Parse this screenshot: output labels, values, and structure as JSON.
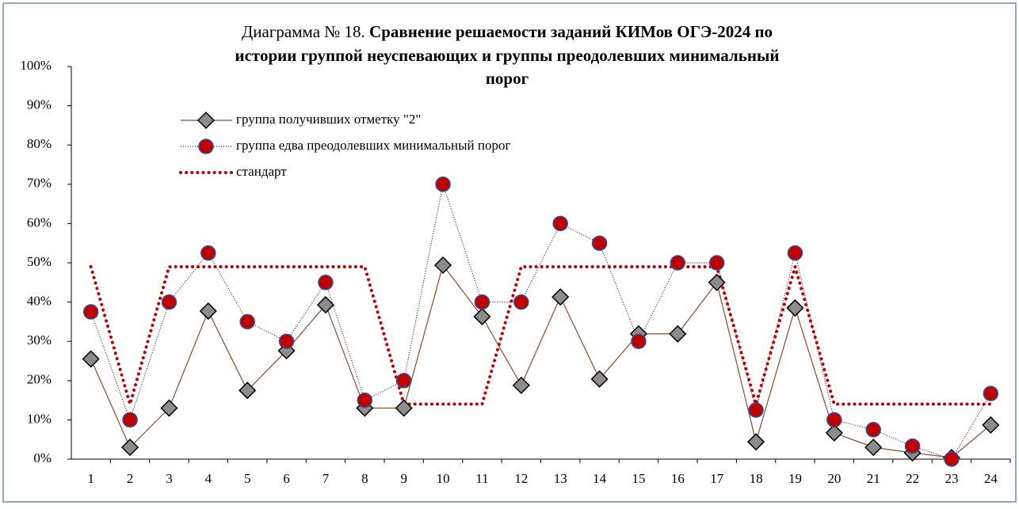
{
  "chart_data": {
    "type": "line",
    "title_prefix": "Диаграмма № 18.",
    "title_lines": [
      "Сравнение решаемости заданий КИМов ОГЭ-2024 по",
      "истории группой неуспевающих и группы преодолевших минимальный",
      "порог"
    ],
    "categories": [
      "1",
      "2",
      "3",
      "4",
      "5",
      "6",
      "7",
      "8",
      "9",
      "10",
      "11",
      "12",
      "13",
      "14",
      "15",
      "16",
      "17",
      "18",
      "19",
      "20",
      "21",
      "22",
      "23",
      "24"
    ],
    "ylim": [
      0,
      100
    ],
    "yticks": [
      {
        "value": 0,
        "label": "0%"
      },
      {
        "value": 10,
        "label": "10%"
      },
      {
        "value": 20,
        "label": "20%"
      },
      {
        "value": 30,
        "label": "30%"
      },
      {
        "value": 40,
        "label": "40%"
      },
      {
        "value": 50,
        "label": "50%"
      },
      {
        "value": 60,
        "label": "60%"
      },
      {
        "value": 70,
        "label": "70%"
      },
      {
        "value": 80,
        "label": "80%"
      },
      {
        "value": 90,
        "label": "90%"
      },
      {
        "value": 100,
        "label": "100%"
      }
    ],
    "series": [
      {
        "name": "группа получивших отметку \"2\"",
        "color": "#8b4a2b",
        "marker": "diamond",
        "marker_color": "#8c8c8c",
        "values": [
          25.5,
          3,
          13,
          37.7,
          17.5,
          27.6,
          39.3,
          13,
          13,
          49.4,
          36.3,
          18.8,
          41.3,
          20.4,
          31.9,
          31.9,
          45,
          4.4,
          38.5,
          6.7,
          3,
          1.6,
          0.4,
          8.7
        ]
      },
      {
        "name": "группа едва преодолевших минимальный порог",
        "color": "#000000",
        "marker": "circle",
        "marker_color": "#c00000",
        "values": [
          37.5,
          10,
          40,
          52.5,
          35,
          30,
          45,
          15,
          20,
          70,
          40,
          40,
          60,
          55,
          30,
          50,
          50,
          12.5,
          52.5,
          10,
          7.5,
          3.3,
          0,
          16.7
        ]
      },
      {
        "name": "стандарт",
        "color": "#c00000",
        "marker": "none",
        "values": [
          49,
          14,
          49,
          49,
          49,
          49,
          49,
          49,
          14,
          14,
          14,
          49,
          49,
          49,
          49,
          49,
          49,
          14,
          49,
          14,
          14,
          14,
          14,
          14
        ]
      }
    ]
  }
}
